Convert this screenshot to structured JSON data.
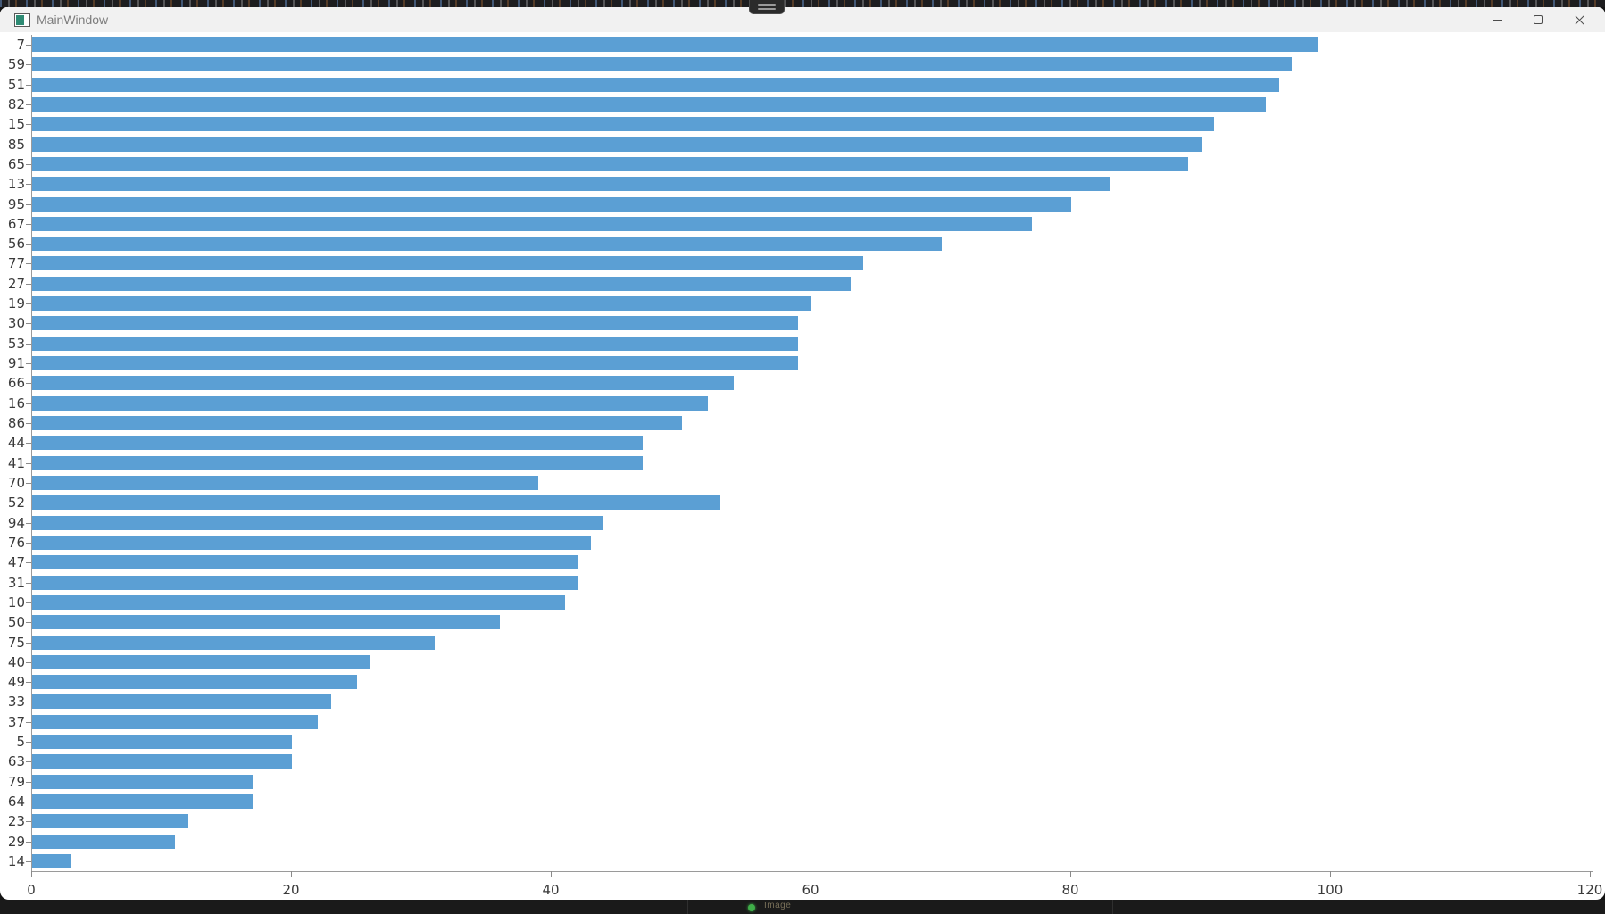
{
  "window": {
    "title": "MainWindow"
  },
  "background": {
    "taskbar_item": {
      "label": "Image",
      "status_color": "#3fae49"
    }
  },
  "chart_data": {
    "type": "bar",
    "orientation": "horizontal",
    "title": "",
    "xlabel": "",
    "ylabel": "",
    "categories": [
      "7",
      "59",
      "51",
      "82",
      "15",
      "85",
      "65",
      "13",
      "95",
      "67",
      "56",
      "77",
      "27",
      "19",
      "30",
      "53",
      "91",
      "66",
      "16",
      "86",
      "44",
      "41",
      "70",
      "52",
      "94",
      "76",
      "47",
      "31",
      "10",
      "50",
      "75",
      "40",
      "49",
      "33",
      "37",
      "5",
      "63",
      "79",
      "64",
      "23",
      "29",
      "14"
    ],
    "values": [
      99,
      97,
      96,
      95,
      91,
      90,
      89,
      83,
      80,
      77,
      70,
      64,
      63,
      60,
      59,
      59,
      59,
      54,
      52,
      50,
      47,
      47,
      39,
      53,
      44,
      43,
      42,
      42,
      41,
      36,
      31,
      26,
      25,
      23,
      22,
      20,
      20,
      17,
      17,
      12,
      11,
      3
    ],
    "x_ticks": [
      0,
      20,
      40,
      60,
      80,
      100,
      120
    ],
    "xlim": [
      0,
      120
    ],
    "bar_color": "#5B9FD4",
    "grid": false,
    "legend": null
  }
}
